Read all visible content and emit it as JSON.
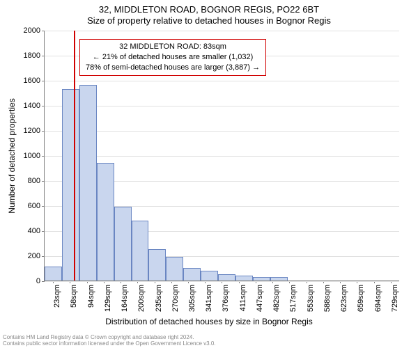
{
  "title": {
    "main": "32, MIDDLETON ROAD, BOGNOR REGIS, PO22 6BT",
    "sub": "Size of property relative to detached houses in Bognor Regis"
  },
  "chart": {
    "type": "histogram",
    "bar_fill": "#c9d6ee",
    "bar_stroke": "#6a86c2",
    "grid_color": "#e0e0e0",
    "axis_color": "#808080",
    "ylim_max": 2000,
    "y_ticks": [
      0,
      200,
      400,
      600,
      800,
      1000,
      1200,
      1400,
      1600,
      1800,
      2000
    ],
    "x_ticks": [
      "23sqm",
      "58sqm",
      "94sqm",
      "129sqm",
      "164sqm",
      "200sqm",
      "235sqm",
      "270sqm",
      "305sqm",
      "341sqm",
      "376sqm",
      "411sqm",
      "447sqm",
      "482sqm",
      "517sqm",
      "553sqm",
      "588sqm",
      "623sqm",
      "659sqm",
      "694sqm",
      "729sqm"
    ],
    "values": [
      110,
      1530,
      1560,
      940,
      590,
      480,
      250,
      190,
      100,
      80,
      50,
      40,
      30,
      30,
      0,
      0,
      0,
      0,
      0,
      0,
      0
    ],
    "highlight": {
      "fraction_x": 0.0833,
      "line_color": "#d00000",
      "box_border": "#d00000",
      "line1": "32 MIDDLETON ROAD: 83sqm",
      "line2": "← 21% of detached houses are smaller (1,032)",
      "line3": "78% of semi-detached houses are larger (3,887) →"
    }
  },
  "axes": {
    "ylabel": "Number of detached properties",
    "xlabel": "Distribution of detached houses by size in Bognor Regis"
  },
  "footer": {
    "line1": "Contains HM Land Registry data © Crown copyright and database right 2024.",
    "line2": "Contains public sector information licensed under the Open Government Licence v3.0."
  }
}
